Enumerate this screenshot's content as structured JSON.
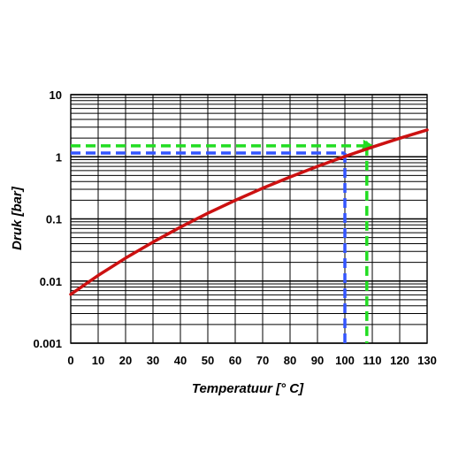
{
  "chart_data": {
    "type": "line",
    "xlabel": "Temperatuur [° C]",
    "ylabel": "Druk [bar]",
    "x_ticks": [
      "0",
      "10",
      "20",
      "30",
      "40",
      "50",
      "60",
      "70",
      "80",
      "90",
      "100",
      "110",
      "120",
      "130"
    ],
    "y_ticks": [
      "0.001",
      "0.01",
      "0.1",
      "1",
      "10"
    ],
    "xlim": [
      0,
      130
    ],
    "ylim": [
      0.001,
      10
    ],
    "y_scale": "log",
    "grid": true,
    "series": [
      {
        "color": "#cc1111",
        "x": [
          0,
          10,
          20,
          30,
          40,
          50,
          60,
          70,
          80,
          90,
          100,
          110,
          120,
          130
        ],
        "y": [
          0.0061,
          0.0123,
          0.0234,
          0.0424,
          0.0738,
          0.1233,
          0.1992,
          0.3116,
          0.4736,
          0.7011,
          1.013,
          1.433,
          1.985,
          2.701
        ]
      }
    ],
    "guides": [
      {
        "color": "#3355ff",
        "x": 100,
        "y": 1.15
      },
      {
        "color": "#22dd22",
        "x": 108,
        "y": 1.5
      }
    ]
  }
}
